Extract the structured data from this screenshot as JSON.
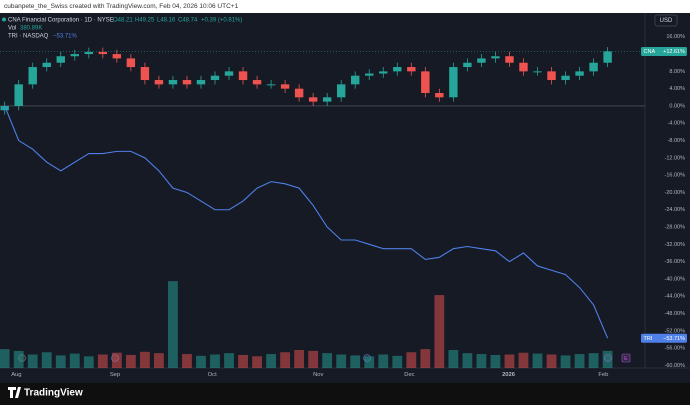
{
  "header": {
    "attribution": "cubanpete_the_Swiss created with TradingView.com, Feb 04, 2026 10:06 UTC+1"
  },
  "footer": {
    "brand": "TradingView"
  },
  "chart_data": {
    "type": "candlestick",
    "currency": "USD",
    "legend": {
      "title": "CNA Financial Corporation · 1D · NYSE",
      "open": "O48.21",
      "high": "H49.25",
      "low": "L48.16",
      "close": "C48.74",
      "change": "+0.39 (+0.81%)",
      "volume_name": "Vol",
      "volume_value": "380.89K",
      "compare_title": "TRI · NASDAQ",
      "compare_value": "−53.71%"
    },
    "earnings_marker": "E",
    "x": [
      1,
      4,
      7,
      10,
      13,
      16,
      19,
      22,
      25,
      28,
      31,
      34,
      37,
      40,
      43,
      46,
      49,
      52,
      55,
      58,
      61,
      64,
      67,
      70,
      73,
      76,
      79,
      82,
      85,
      88,
      91,
      94,
      97,
      100,
      103,
      106,
      109,
      112,
      115,
      118,
      121,
      124,
      127,
      130
    ],
    "xlim": [
      0,
      138
    ],
    "xticks": [
      {
        "value": 3.5,
        "label": "Aug"
      },
      {
        "value": 24.6,
        "label": "Sep"
      },
      {
        "value": 45.4,
        "label": "Oct"
      },
      {
        "value": 68.1,
        "label": "Nov"
      },
      {
        "value": 87.6,
        "label": "Dec"
      },
      {
        "value": 108.8,
        "label": "2026"
      },
      {
        "value": 129.1,
        "label": "Feb"
      }
    ],
    "ylim": [
      -60.6,
      21.5
    ],
    "yticks": [
      {
        "value": 16,
        "label": "16.00%"
      },
      {
        "value": 12,
        "label": "12.00%"
      },
      {
        "value": 8,
        "label": "8.00%"
      },
      {
        "value": 4,
        "label": "4.00%"
      },
      {
        "value": 0,
        "label": "0.00%"
      },
      {
        "value": -4,
        "label": "-4.00%"
      },
      {
        "value": -8,
        "label": "-8.00%"
      },
      {
        "value": -12,
        "label": "-12.00%"
      },
      {
        "value": -16,
        "label": "-16.00%"
      },
      {
        "value": -20,
        "label": "-20.00%"
      },
      {
        "value": -24,
        "label": "-24.00%"
      },
      {
        "value": -28,
        "label": "-28.00%"
      },
      {
        "value": -32,
        "label": "-32.00%"
      },
      {
        "value": -36,
        "label": "-36.00%"
      },
      {
        "value": -40,
        "label": "-40.00%"
      },
      {
        "value": -44,
        "label": "-44.00%"
      },
      {
        "value": -48,
        "label": "-48.00%"
      },
      {
        "value": -52,
        "label": "-52.00%"
      },
      {
        "value": -56,
        "label": "-56.00%"
      },
      {
        "value": -60,
        "label": "-60.00%"
      }
    ],
    "grid": false,
    "zero_line": true,
    "series": [
      {
        "name": "CNA",
        "type": "candlestick",
        "up_color": "#26a69a",
        "down_color": "#ef5350",
        "last_label": "+12.61%",
        "open": [
          -1,
          0,
          5,
          9,
          10,
          11.5,
          12,
          12.5,
          12,
          11,
          9,
          6,
          5,
          6,
          5,
          6,
          7,
          8,
          6,
          5,
          5,
          4,
          2,
          1,
          2,
          5,
          7,
          7.5,
          8,
          9,
          8,
          3,
          2,
          9,
          10,
          11,
          11.5,
          10,
          8,
          8,
          6,
          7,
          8,
          10
        ],
        "high": [
          1,
          6,
          10,
          11,
          12.5,
          13,
          13.5,
          13.5,
          13,
          12,
          10,
          7,
          7,
          7,
          7,
          8,
          9,
          9,
          7,
          6,
          6,
          5,
          3,
          3,
          6,
          8,
          8.5,
          9,
          10,
          10,
          9,
          4,
          10,
          11,
          12,
          12.5,
          12.5,
          11,
          9,
          9,
          8,
          9,
          11,
          13.6
        ],
        "low": [
          -2,
          -1,
          4,
          8,
          9,
          10.5,
          11,
          11,
          10,
          8,
          5,
          4,
          4,
          4,
          4,
          5,
          6,
          5,
          4,
          4,
          3,
          1,
          0,
          0,
          1,
          4,
          6,
          6.5,
          7,
          7,
          2,
          1,
          1,
          8,
          9,
          10,
          9,
          7,
          7,
          5,
          5,
          6,
          7,
          9
        ],
        "close": [
          0,
          5,
          9,
          10,
          11.5,
          12,
          12.5,
          12,
          11,
          9,
          6,
          5,
          6,
          5,
          6,
          7,
          8,
          6,
          5,
          5,
          4,
          2,
          1,
          2,
          5,
          7,
          7.5,
          8,
          9,
          8,
          3,
          2,
          9,
          10,
          11,
          11.5,
          10,
          8,
          8,
          6,
          7,
          8,
          10,
          12.61
        ]
      },
      {
        "name": "TRI",
        "type": "line",
        "color": "#4f7fe8",
        "last_label": "−53.71%",
        "values": [
          0,
          -8,
          -10,
          -13,
          -15,
          -13,
          -11,
          -11,
          -10.5,
          -10.5,
          -12,
          -15,
          -19,
          -20,
          -22,
          -24,
          -24,
          -22,
          -19,
          -17.5,
          -18,
          -19,
          -23,
          -28,
          -31,
          -31,
          -32,
          -33,
          -33,
          -33,
          -35.5,
          -35,
          -33,
          -32.5,
          -33,
          -33.5,
          -36,
          -34,
          -37,
          -38,
          -39,
          -42,
          -46,
          -53.71
        ]
      }
    ],
    "volume": {
      "ylim": [
        0,
        2000000
      ],
      "values": [
        420000,
        380000,
        300000,
        350000,
        280000,
        320000,
        260000,
        300000,
        340000,
        290000,
        360000,
        330000,
        1930000,
        310000,
        270000,
        300000,
        330000,
        290000,
        260000,
        310000,
        350000,
        400000,
        380000,
        330000,
        300000,
        280000,
        260000,
        300000,
        270000,
        350000,
        420000,
        1620000,
        400000,
        330000,
        310000,
        290000,
        300000,
        340000,
        320000,
        300000,
        280000,
        310000,
        330000,
        380890
      ]
    }
  }
}
